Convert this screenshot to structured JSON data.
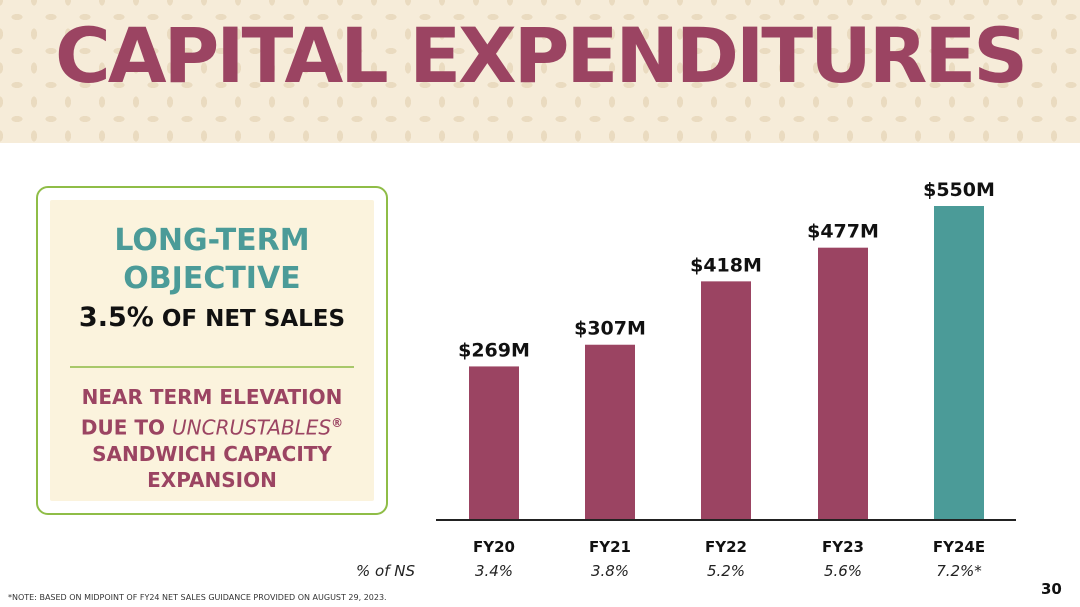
{
  "slide": {
    "title": "CAPITAL EXPENDITURES",
    "page_number": "30",
    "footnote": "*NOTE: BASED ON MIDPOINT OF FY24 NET SALES GUIDANCE PROVIDED ON AUGUST 29, 2023."
  },
  "card": {
    "line1": "LONG-TERM",
    "line2": "OBJECTIVE",
    "pct": "3.5%",
    "pct_suffix": "OF NET SALES",
    "elev_line1": "NEAR TERM ELEVATION",
    "elev_line2_prefix": "DUE TO",
    "elev_line2_italic": "UNCRUSTABLES",
    "elev_reg": "®",
    "elev_line3": "SANDWICH CAPACITY",
    "elev_line4": "EXPANSION"
  },
  "chart_data": {
    "type": "bar",
    "categories": [
      "FY20",
      "FY21",
      "FY22",
      "FY23",
      "FY24E"
    ],
    "values": [
      269,
      307,
      418,
      477,
      550
    ],
    "value_labels": [
      "$269M",
      "$307M",
      "$418M",
      "$477M",
      "$550M"
    ],
    "pct_row_label": "% of NS",
    "pct_of_ns": [
      "3.4%",
      "3.8%",
      "5.2%",
      "5.6%",
      "7.2%*"
    ],
    "ylim": [
      0,
      550
    ],
    "grid": false,
    "colors": [
      "#9b4462",
      "#9b4462",
      "#9b4462",
      "#9b4462",
      "#4b9b98"
    ],
    "axis_color": "#222222"
  }
}
